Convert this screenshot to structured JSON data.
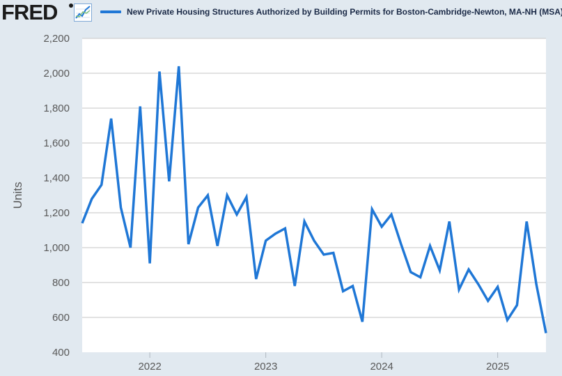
{
  "header": {
    "logo_text": "FRED",
    "graph_icon": "line-chart-icon",
    "legend_label": "New Private Housing Structures Authorized by Building Permits for Boston-Cambridge-Newton, MA-NH (MSA)"
  },
  "colors": {
    "background": "#e1e9f0",
    "plot_background": "#ffffff",
    "series": "#1f77d6",
    "grid": "#d0d0d0",
    "text": "#595959"
  },
  "chart_data": {
    "type": "line",
    "title": "New Private Housing Structures Authorized by Building Permits for Boston-Cambridge-Newton, MA-NH (MSA)",
    "xlabel": "",
    "ylabel": "Units",
    "ylim": [
      400,
      2200
    ],
    "yticks": [
      400,
      600,
      800,
      1000,
      1200,
      1400,
      1600,
      1800,
      2000,
      2200
    ],
    "ytick_labels": [
      "400",
      "600",
      "800",
      "1,000",
      "1,200",
      "1,400",
      "1,600",
      "1,800",
      "2,000",
      "2,200"
    ],
    "x_start": "2021-06",
    "xticks": [
      {
        "label": "2022",
        "index": 7
      },
      {
        "label": "2023",
        "index": 19
      },
      {
        "label": "2024",
        "index": 31
      },
      {
        "label": "2025",
        "index": 43
      }
    ],
    "grid": true,
    "series": [
      {
        "name": "New Private Housing Structures Authorized by Building Permits for Boston-Cambridge-Newton, MA-NH (MSA)",
        "values": [
          1140,
          1280,
          1360,
          1740,
          1230,
          1000,
          1810,
          910,
          2010,
          1380,
          2040,
          1020,
          1230,
          1300,
          1010,
          1300,
          1190,
          1290,
          820,
          1040,
          1080,
          1110,
          780,
          1150,
          1040,
          960,
          970,
          750,
          780,
          575,
          1220,
          1120,
          1190,
          1020,
          860,
          830,
          1010,
          870,
          1150,
          760,
          875,
          790,
          695,
          775,
          585,
          670,
          1150,
          790,
          510
        ]
      }
    ]
  }
}
